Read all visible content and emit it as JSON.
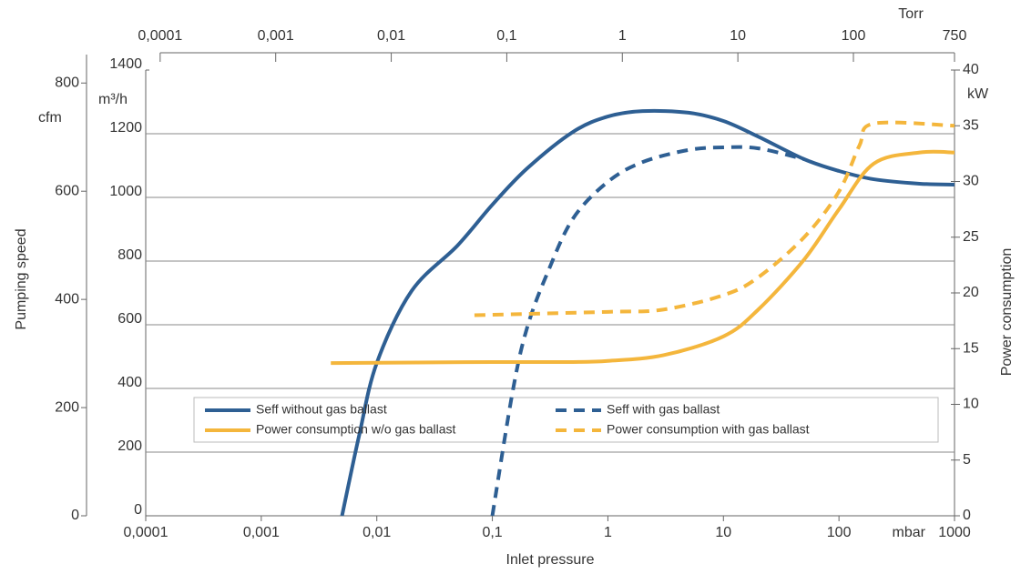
{
  "chart_data": {
    "type": "line",
    "x_label": "Inlet pressure",
    "x_unit": "mbar",
    "xscale": "log",
    "xlim": [
      0.0001,
      1000
    ],
    "xticks": [
      {
        "value": 0.0001,
        "label": "0,0001"
      },
      {
        "value": 0.001,
        "label": "0,001"
      },
      {
        "value": 0.01,
        "label": "0,01"
      },
      {
        "value": 0.1,
        "label": "0,1"
      },
      1,
      10,
      100,
      1000
    ],
    "x2_unit": "Torr",
    "x2lim": [
      7.5e-05,
      750
    ],
    "x2ticks": [
      {
        "value": 0.0001,
        "label": "0,0001"
      },
      {
        "value": 0.001,
        "label": "0,001"
      },
      {
        "value": 0.01,
        "label": "0,01"
      },
      {
        "value": 0.1,
        "label": "0,1"
      },
      1,
      10,
      100,
      750
    ],
    "y_label": "Pumping speed",
    "y_unit": "m³/h",
    "ylim": [
      0,
      1400
    ],
    "yticks": [
      0,
      200,
      400,
      600,
      800,
      1000,
      1200,
      1400
    ],
    "y3_unit": "cfm",
    "y3lim": [
      0,
      824
    ],
    "y3ticks": [
      0,
      200,
      400,
      600,
      800
    ],
    "y2_label": "Power consumption",
    "y2_unit": "kW",
    "y2lim": [
      0,
      40
    ],
    "y2ticks": [
      0,
      5,
      10,
      15,
      20,
      25,
      30,
      35,
      40
    ],
    "grid": true,
    "series": [
      {
        "name": "Seff without gas ballast",
        "color": "#2e5f93",
        "dashed": false,
        "x": [
          0.005,
          0.007,
          0.01,
          0.02,
          0.05,
          0.1,
          0.2,
          0.5,
          1,
          2,
          5,
          10,
          20,
          50,
          100,
          200,
          500,
          1000
        ],
        "values": [
          0,
          249,
          480,
          706,
          849,
          977,
          1091,
          1206,
          1254,
          1271,
          1266,
          1240,
          1191,
          1120,
          1083,
          1057,
          1043,
          1040
        ]
      },
      {
        "name": "Seff with gas ballast",
        "color": "#2e5f93",
        "dashed": true,
        "x": [
          0.1,
          0.15,
          0.2,
          0.3,
          0.5,
          1,
          2,
          5,
          10,
          20,
          50
        ],
        "values": [
          0,
          391,
          591,
          763,
          934,
          1049,
          1111,
          1149,
          1157,
          1154,
          1120
        ]
      },
      {
        "name": "Power consumption w/o gas ballast",
        "color": "#f4b63c",
        "dashed": false,
        "axis": "y2",
        "x": [
          0.004,
          0.1,
          0.5,
          1,
          3,
          10,
          20,
          50,
          100,
          200,
          500,
          1000
        ],
        "values": [
          13.7,
          13.8,
          13.8,
          13.9,
          14.4,
          16.1,
          18.5,
          23,
          27.5,
          31.6,
          32.6,
          32.6
        ]
      },
      {
        "name": "Power consumption with gas ballast",
        "color": "#f4b63c",
        "dashed": true,
        "axis": "y2",
        "x": [
          0.07,
          1,
          3,
          10,
          20,
          50,
          100,
          150,
          200,
          1000
        ],
        "values": [
          18,
          18.3,
          18.5,
          19.8,
          21.4,
          25,
          29.1,
          33.2,
          35.2,
          35
        ]
      }
    ]
  }
}
